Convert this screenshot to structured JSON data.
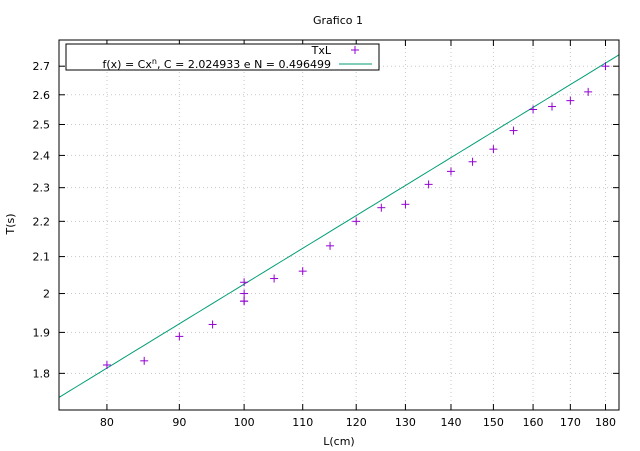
{
  "chart_data": {
    "type": "scatter",
    "title": "Grafico 1",
    "xlabel": "L(cm)",
    "ylabel": "T(s)",
    "xscale": "log",
    "yscale": "log",
    "xlim": [
      74,
      184
    ],
    "ylim": [
      1.715,
      2.795
    ],
    "grid": true,
    "legend_position": "top-left",
    "x_ticks": [
      80,
      90,
      100,
      110,
      120,
      130,
      140,
      150,
      160,
      170,
      180
    ],
    "y_ticks": [
      1.8,
      1.9,
      2,
      2.1,
      2.2,
      2.3,
      2.4,
      2.5,
      2.6,
      2.7
    ],
    "series": [
      {
        "name": "TxL",
        "kind": "points",
        "marker": "plus",
        "color": "#9400d3",
        "x": [
          80,
          85,
          90,
          95,
          100,
          100,
          100,
          100,
          105,
          110,
          115,
          120,
          125,
          130,
          135,
          140,
          145,
          150,
          155,
          160,
          165,
          170,
          175,
          180
        ],
        "y": [
          1.82,
          1.83,
          1.89,
          1.92,
          2.03,
          2.0,
          1.98,
          1.98,
          2.04,
          2.06,
          2.13,
          2.2,
          2.24,
          2.25,
          2.31,
          2.35,
          2.38,
          2.42,
          2.48,
          2.55,
          2.56,
          2.58,
          2.61,
          2.7
        ]
      },
      {
        "name_prefix": "f(x) = Cx",
        "name_sup": "n",
        "name_suffix": ", C = 2.024933 e N = 0.496499",
        "kind": "line",
        "color": "#009e73",
        "C": 2.024933,
        "N": 0.496499
      }
    ]
  }
}
